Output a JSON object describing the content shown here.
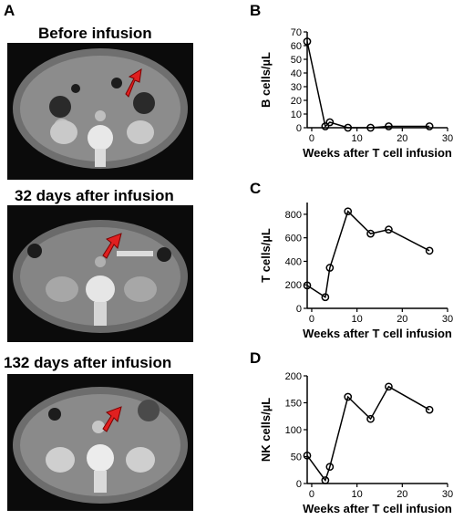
{
  "panels": {
    "a": "A",
    "b": "B",
    "c": "C",
    "d": "D"
  },
  "scans": [
    {
      "title": "Before infusion",
      "arrow_color": "#e02020"
    },
    {
      "title": "32 days after infusion",
      "arrow_color": "#e02020"
    },
    {
      "title": "132 days after infusion",
      "arrow_color": "#e02020"
    }
  ],
  "chart_data": [
    {
      "type": "line",
      "xlabel": "Weeks after T cell infusion",
      "ylabel": "B cells/µL",
      "xlim": [
        -1,
        30
      ],
      "ylim": [
        0,
        70
      ],
      "xticks": [
        0,
        10,
        20,
        30
      ],
      "yticks": [
        0,
        10,
        20,
        30,
        40,
        50,
        60,
        70
      ],
      "x": [
        -1,
        3,
        4,
        8,
        13,
        17,
        26
      ],
      "y": [
        63,
        1,
        4,
        0,
        0,
        1,
        1
      ]
    },
    {
      "type": "line",
      "xlabel": "Weeks after T cell infusion",
      "ylabel": "T cells/µL",
      "xlim": [
        -1,
        30
      ],
      "ylim": [
        0,
        900
      ],
      "xticks": [
        0,
        10,
        20,
        30
      ],
      "yticks": [
        0,
        200,
        400,
        600,
        800
      ],
      "x": [
        -1,
        3,
        4,
        8,
        13,
        17,
        26
      ],
      "y": [
        195,
        95,
        345,
        825,
        635,
        670,
        490
      ]
    },
    {
      "type": "line",
      "xlabel": "Weeks after T cell infusion",
      "ylabel": "NK cells/µL",
      "xlim": [
        -1,
        30
      ],
      "ylim": [
        0,
        200
      ],
      "xticks": [
        0,
        10,
        20,
        30
      ],
      "yticks": [
        0,
        50,
        100,
        150,
        200
      ],
      "x": [
        -1,
        3,
        4,
        8,
        13,
        17,
        26
      ],
      "y": [
        52,
        6,
        31,
        161,
        120,
        180,
        137
      ]
    }
  ]
}
